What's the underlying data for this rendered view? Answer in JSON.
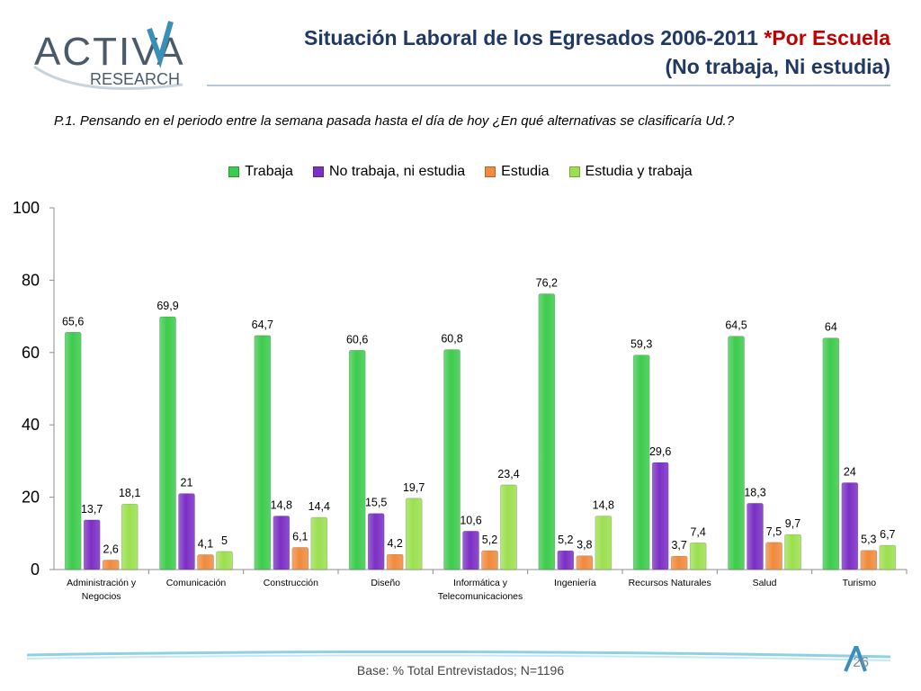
{
  "branding": {
    "logo_word": "ACTIVA",
    "logo_sub": "RESEARCH",
    "colors": {
      "teal": "#3a8fb7",
      "dark": "#4b5a6a"
    }
  },
  "header": {
    "title_main": "Situación Laboral de los Egresados 2006-2011",
    "title_highlight": "*Por Escuela",
    "title_line2": "(No trabaja, Ni estudia)"
  },
  "question": "P.1.  Pensando en el periodo entre la semana pasada hasta el día de hoy ¿En qué alternativas se clasificaría Ud.?",
  "footer": {
    "base_text": "Base: % Total Entrevistados; N=1196",
    "page_number": "26"
  },
  "chart_data": {
    "type": "bar",
    "categories": [
      [
        "Administración y",
        "Negocios"
      ],
      [
        "Comunicación"
      ],
      [
        "Construcción"
      ],
      [
        "Diseño"
      ],
      [
        "Informática y",
        "Telecomunicaciones"
      ],
      [
        "Ingeniería"
      ],
      [
        "Recursos Naturales"
      ],
      [
        "Salud"
      ],
      [
        "Turismo"
      ]
    ],
    "series": [
      {
        "name": "Trabaja",
        "color": "#3dcb4d",
        "values": [
          65.6,
          69.9,
          64.7,
          60.6,
          60.8,
          76.2,
          59.3,
          64.5,
          64
        ],
        "labels": [
          "65,6",
          "69,9",
          "64,7",
          "60,6",
          "60,8",
          "76,2",
          "59,3",
          "64,5",
          "64"
        ]
      },
      {
        "name": "No trabaja, ni estudia",
        "color": "#7b2fc4",
        "values": [
          13.7,
          21,
          14.8,
          15.5,
          10.6,
          5.2,
          29.6,
          18.3,
          24
        ],
        "labels": [
          "13,7",
          "21",
          "14,8",
          "15,5",
          "10,6",
          "5,2",
          "29,6",
          "18,3",
          "24"
        ]
      },
      {
        "name": "Estudia",
        "color": "#f08a3c",
        "values": [
          2.6,
          4.1,
          6.1,
          4.2,
          5.2,
          3.8,
          3.7,
          7.5,
          5.3
        ],
        "labels": [
          "2,6",
          "4,1",
          "6,1",
          "4,2",
          "5,2",
          "3,8",
          "3,7",
          "7,5",
          "5,3"
        ]
      },
      {
        "name": "Estudia y trabaja",
        "color": "#9be04f",
        "values": [
          18.1,
          5,
          14.4,
          19.7,
          23.4,
          14.8,
          7.4,
          9.7,
          6.7
        ],
        "labels": [
          "18,1",
          "5",
          "14,4",
          "19,7",
          "23,4",
          "14,8",
          "7,4",
          "9,7",
          "6,7"
        ]
      }
    ],
    "yticks": [
      "0",
      "20",
      "40",
      "60",
      "80",
      "100"
    ],
    "ylim": [
      0,
      100
    ],
    "grid": false,
    "legend_position": "top-center"
  }
}
